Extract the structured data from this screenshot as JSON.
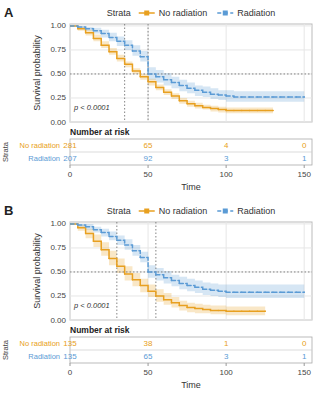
{
  "chart_data": [
    {
      "type": "step",
      "title": "A",
      "xlabel": "Time",
      "ylabel": "Survival probability",
      "legend_title": "Strata",
      "legend": "top",
      "grid": true,
      "xlim": [
        0,
        155
      ],
      "ylim": [
        0.0,
        1.02
      ],
      "xticks": [
        0,
        50,
        100,
        150
      ],
      "yticks": [
        {
          "value": 0,
          "label": "0.00"
        },
        {
          "value": 0.25,
          "label": "0.25"
        },
        {
          "value": 0.5,
          "label": "0.50"
        },
        {
          "value": 0.75,
          "label": "0.75"
        },
        {
          "value": 1,
          "label": "1.00"
        }
      ],
      "annotations": [
        "p < 0.0001"
      ],
      "hlines": [
        0.5
      ],
      "vlines": [
        35,
        50
      ],
      "series": [
        {
          "name": "No radiation",
          "color": "#E8A020",
          "line_style": "solid",
          "x": [
            0,
            5,
            10,
            15,
            20,
            25,
            30,
            35,
            40,
            45,
            50,
            55,
            60,
            65,
            70,
            75,
            80,
            85,
            90,
            95,
            100,
            105,
            110,
            115,
            120,
            125,
            130
          ],
          "values": [
            1.0,
            0.97,
            0.93,
            0.87,
            0.8,
            0.73,
            0.66,
            0.6,
            0.53,
            0.47,
            0.42,
            0.36,
            0.31,
            0.27,
            0.22,
            0.19,
            0.17,
            0.15,
            0.14,
            0.13,
            0.12,
            0.12,
            0.12,
            0.12,
            0.12,
            0.12,
            0.12
          ],
          "lower": [
            1.0,
            0.95,
            0.9,
            0.84,
            0.77,
            0.7,
            0.63,
            0.57,
            0.5,
            0.44,
            0.38,
            0.33,
            0.28,
            0.24,
            0.19,
            0.16,
            0.14,
            0.13,
            0.11,
            0.1,
            0.09,
            0.09,
            0.09,
            0.09,
            0.09,
            0.09,
            0.09
          ],
          "upper": [
            1.0,
            0.99,
            0.96,
            0.91,
            0.84,
            0.77,
            0.7,
            0.63,
            0.56,
            0.5,
            0.45,
            0.39,
            0.34,
            0.3,
            0.25,
            0.22,
            0.2,
            0.18,
            0.17,
            0.16,
            0.15,
            0.15,
            0.15,
            0.15,
            0.15,
            0.15,
            0.15
          ]
        },
        {
          "name": "Radiation",
          "color": "#5B9BD5",
          "line_style": "dashed",
          "x": [
            0,
            5,
            10,
            15,
            20,
            25,
            30,
            35,
            40,
            45,
            50,
            55,
            60,
            65,
            70,
            75,
            80,
            85,
            90,
            95,
            100,
            105,
            110,
            115,
            120,
            125,
            130,
            135,
            140,
            145,
            150
          ],
          "values": [
            1.0,
            0.99,
            0.97,
            0.95,
            0.92,
            0.88,
            0.84,
            0.8,
            0.74,
            0.68,
            0.5,
            0.47,
            0.44,
            0.41,
            0.38,
            0.35,
            0.33,
            0.31,
            0.29,
            0.28,
            0.27,
            0.26,
            0.26,
            0.26,
            0.26,
            0.26,
            0.26,
            0.26,
            0.26,
            0.26,
            0.26
          ],
          "lower": [
            1.0,
            0.97,
            0.95,
            0.92,
            0.88,
            0.84,
            0.79,
            0.75,
            0.69,
            0.63,
            0.44,
            0.41,
            0.38,
            0.35,
            0.32,
            0.3,
            0.27,
            0.26,
            0.24,
            0.23,
            0.21,
            0.21,
            0.21,
            0.21,
            0.21,
            0.21,
            0.21,
            0.21,
            0.21,
            0.21,
            0.21
          ],
          "upper": [
            1.0,
            1.0,
            0.99,
            0.98,
            0.96,
            0.93,
            0.89,
            0.85,
            0.8,
            0.74,
            0.57,
            0.54,
            0.51,
            0.47,
            0.44,
            0.41,
            0.38,
            0.37,
            0.35,
            0.33,
            0.33,
            0.32,
            0.32,
            0.32,
            0.32,
            0.32,
            0.32,
            0.32,
            0.32,
            0.32,
            0.32
          ]
        }
      ],
      "risk_table": {
        "title": "Number at risk",
        "label": "Strata",
        "x": [
          0,
          50,
          100,
          150
        ],
        "rows": [
          {
            "name": "No radiation",
            "values": [
              281,
              65,
              4,
              0
            ]
          },
          {
            "name": "Radiation",
            "values": [
              207,
              92,
              3,
              1
            ]
          }
        ]
      }
    },
    {
      "type": "step",
      "title": "B",
      "xlabel": "Time",
      "ylabel": "Survival probability",
      "legend_title": "Strata",
      "legend": "top",
      "grid": true,
      "xlim": [
        0,
        155
      ],
      "ylim": [
        0.0,
        1.02
      ],
      "xticks": [
        0,
        50,
        100,
        150
      ],
      "yticks": [
        {
          "value": 0,
          "label": "0.00"
        },
        {
          "value": 0.25,
          "label": "0.25"
        },
        {
          "value": 0.5,
          "label": "0.50"
        },
        {
          "value": 0.75,
          "label": "0.75"
        },
        {
          "value": 1,
          "label": "1.00"
        }
      ],
      "annotations": [
        "p < 0.0001"
      ],
      "hlines": [
        0.5
      ],
      "vlines": [
        30,
        55
      ],
      "series": [
        {
          "name": "No radiation",
          "color": "#E8A020",
          "line_style": "solid",
          "x": [
            0,
            5,
            10,
            15,
            20,
            25,
            30,
            35,
            40,
            45,
            50,
            55,
            60,
            65,
            70,
            75,
            80,
            85,
            90,
            95,
            100,
            105,
            110,
            115,
            120,
            125
          ],
          "values": [
            1.0,
            0.96,
            0.9,
            0.82,
            0.73,
            0.64,
            0.56,
            0.48,
            0.42,
            0.36,
            0.3,
            0.25,
            0.21,
            0.18,
            0.15,
            0.13,
            0.12,
            0.11,
            0.1,
            0.1,
            0.09,
            0.09,
            0.09,
            0.09,
            0.09,
            0.09
          ],
          "lower": [
            1.0,
            0.93,
            0.85,
            0.76,
            0.67,
            0.57,
            0.49,
            0.41,
            0.35,
            0.29,
            0.24,
            0.19,
            0.16,
            0.13,
            0.1,
            0.08,
            0.07,
            0.07,
            0.06,
            0.06,
            0.05,
            0.05,
            0.05,
            0.05,
            0.05,
            0.05
          ],
          "upper": [
            1.0,
            0.99,
            0.95,
            0.89,
            0.81,
            0.72,
            0.64,
            0.56,
            0.49,
            0.43,
            0.37,
            0.32,
            0.28,
            0.24,
            0.2,
            0.18,
            0.17,
            0.16,
            0.15,
            0.15,
            0.14,
            0.14,
            0.14,
            0.14,
            0.14,
            0.14
          ]
        },
        {
          "name": "Radiation",
          "color": "#5B9BD5",
          "line_style": "dashed",
          "x": [
            0,
            5,
            10,
            15,
            20,
            25,
            30,
            35,
            40,
            45,
            50,
            55,
            60,
            65,
            70,
            75,
            80,
            85,
            90,
            95,
            100,
            105,
            110,
            115,
            120,
            125,
            130,
            135,
            140,
            145,
            150
          ],
          "values": [
            1.0,
            0.99,
            0.97,
            0.94,
            0.91,
            0.87,
            0.83,
            0.78,
            0.72,
            0.65,
            0.5,
            0.47,
            0.44,
            0.41,
            0.38,
            0.36,
            0.34,
            0.32,
            0.31,
            0.3,
            0.29,
            0.29,
            0.29,
            0.29,
            0.29,
            0.29,
            0.29,
            0.29,
            0.29,
            0.29,
            0.29
          ],
          "lower": [
            1.0,
            0.97,
            0.94,
            0.91,
            0.87,
            0.83,
            0.78,
            0.73,
            0.67,
            0.6,
            0.44,
            0.41,
            0.38,
            0.35,
            0.32,
            0.3,
            0.28,
            0.26,
            0.25,
            0.24,
            0.23,
            0.23,
            0.23,
            0.23,
            0.23,
            0.23,
            0.23,
            0.23,
            0.23,
            0.23,
            0.23
          ],
          "upper": [
            1.0,
            1.0,
            1.0,
            0.97,
            0.95,
            0.92,
            0.88,
            0.84,
            0.78,
            0.71,
            0.57,
            0.54,
            0.51,
            0.47,
            0.45,
            0.43,
            0.41,
            0.39,
            0.38,
            0.37,
            0.37,
            0.37,
            0.37,
            0.37,
            0.37,
            0.37,
            0.37,
            0.37,
            0.37,
            0.37,
            0.37
          ]
        }
      ],
      "risk_table": {
        "title": "Number at risk",
        "label": "Strata",
        "x": [
          0,
          50,
          100,
          150
        ],
        "rows": [
          {
            "name": "No radiation",
            "values": [
              135,
              38,
              1,
              0
            ]
          },
          {
            "name": "Radiation",
            "values": [
              135,
              65,
              3,
              1
            ]
          }
        ]
      }
    }
  ]
}
